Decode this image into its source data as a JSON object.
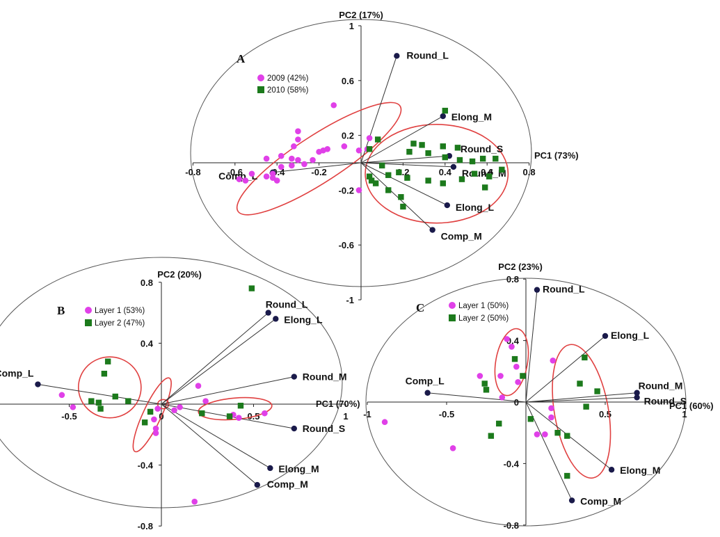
{
  "chart_data": [
    {
      "type": "scatter",
      "panel_label": "A",
      "xlabel": "PC1 (73%)",
      "ylabel": "PC2 (17%)",
      "xlim": [
        -0.8,
        0.8
      ],
      "ylim": [
        -1,
        1
      ],
      "xticks": [
        -0.8,
        -0.6,
        -0.4,
        -0.2,
        0,
        0.2,
        0.4,
        0.6,
        0.8
      ],
      "xtick_labels": [
        "-0.8",
        "-0.6",
        "-0.4",
        "-0.2",
        "",
        "0.2",
        "0.4",
        "0.6",
        "0.8"
      ],
      "yticks": [
        -1,
        -0.6,
        -0.2,
        0.2,
        0.6,
        1
      ],
      "ytick_labels": [
        "-1",
        "-0.6",
        "-0.2",
        "0.2",
        "0.6",
        "1"
      ],
      "colors": {
        "series1": "#e040e8",
        "series2": "#1c7a1c",
        "loadings": "#1a1a4a",
        "ellipse": "#e04040"
      },
      "legend": [
        {
          "label": "2009 (42%)",
          "marker": "circle"
        },
        {
          "label": "2010 (58%)",
          "marker": "square"
        }
      ],
      "loadings": [
        {
          "name": "Round_L",
          "x": 0.17,
          "y": 0.78
        },
        {
          "name": "Elong_M",
          "x": 0.39,
          "y": 0.34
        },
        {
          "name": "Round_S",
          "x": 0.42,
          "y": 0.05
        },
        {
          "name": "Round_M",
          "x": 0.44,
          "y": -0.03
        },
        {
          "name": "Elong_L",
          "x": 0.41,
          "y": -0.31
        },
        {
          "name": "Comp_M",
          "x": 0.34,
          "y": -0.49
        },
        {
          "name": "Comp_L",
          "x": -0.42,
          "y": -0.07
        }
      ],
      "series": [
        {
          "name": "2009 (42%)",
          "points": [
            [
              -0.13,
              0.42
            ],
            [
              -0.3,
              0.23
            ],
            [
              -0.3,
              0.17
            ],
            [
              -0.32,
              0.12
            ],
            [
              -0.45,
              0.03
            ],
            [
              -0.38,
              0.05
            ],
            [
              -0.33,
              0.03
            ],
            [
              -0.3,
              0.02
            ],
            [
              -0.18,
              0.09
            ],
            [
              -0.16,
              0.1
            ],
            [
              -0.2,
              0.08
            ],
            [
              -0.08,
              0.12
            ],
            [
              0.04,
              0.18
            ],
            [
              0.03,
              0.1
            ],
            [
              -0.01,
              0.09
            ],
            [
              -0.52,
              -0.08
            ],
            [
              -0.55,
              -0.13
            ],
            [
              -0.45,
              -0.1
            ],
            [
              -0.42,
              -0.11
            ],
            [
              -0.38,
              -0.03
            ],
            [
              -0.33,
              -0.02
            ],
            [
              -0.27,
              -0.01
            ],
            [
              -0.23,
              0.02
            ],
            [
              -0.01,
              -0.2
            ],
            [
              -0.58,
              -0.12
            ],
            [
              -0.42,
              -0.08
            ],
            [
              -0.4,
              -0.13
            ]
          ]
        },
        {
          "name": "2010 (58%)",
          "points": [
            [
              0.08,
              0.17
            ],
            [
              0.04,
              0.1
            ],
            [
              0.4,
              0.38
            ],
            [
              0.25,
              0.14
            ],
            [
              0.29,
              0.13
            ],
            [
              0.39,
              0.12
            ],
            [
              0.46,
              0.11
            ],
            [
              0.23,
              0.08
            ],
            [
              0.32,
              0.07
            ],
            [
              0.4,
              0.04
            ],
            [
              0.47,
              0.02
            ],
            [
              0.53,
              0.01
            ],
            [
              0.58,
              0.03
            ],
            [
              0.64,
              0.03
            ],
            [
              0.67,
              -0.05
            ],
            [
              0.54,
              -0.08
            ],
            [
              0.61,
              -0.1
            ],
            [
              0.48,
              -0.12
            ],
            [
              0.39,
              -0.15
            ],
            [
              0.32,
              -0.13
            ],
            [
              0.22,
              -0.11
            ],
            [
              0.18,
              -0.07
            ],
            [
              0.13,
              -0.09
            ],
            [
              0.1,
              -0.02
            ],
            [
              0.04,
              -0.1
            ],
            [
              0.05,
              -0.13
            ],
            [
              0.13,
              -0.2
            ],
            [
              0.19,
              -0.25
            ],
            [
              0.2,
              -0.32
            ],
            [
              0.07,
              -0.15
            ],
            [
              0.59,
              -0.18
            ]
          ]
        }
      ],
      "ellipses": [
        {
          "cx": -0.2,
          "cy": 0.03,
          "rx": 0.46,
          "ry": 0.17,
          "angle": 33
        },
        {
          "cx": 0.36,
          "cy": -0.08,
          "rx": 0.34,
          "ry": 0.36,
          "angle": 0
        }
      ]
    },
    {
      "type": "scatter",
      "panel_label": "B",
      "xlabel": "PC1 (70%)",
      "ylabel": "PC2 (20%)",
      "xlim": [
        -1,
        1
      ],
      "ylim": [
        -0.8,
        0.8
      ],
      "xticks": [
        -1,
        -0.5,
        0,
        0.5,
        1
      ],
      "xtick_labels": [
        "-1",
        "-0.5",
        "0",
        "0.5",
        "1"
      ],
      "yticks": [
        -0.8,
        -0.4,
        0.4,
        0.8
      ],
      "ytick_labels": [
        "-0.8",
        "-0.4",
        "0.4",
        "0.8"
      ],
      "colors": {
        "series1": "#e040e8",
        "series2": "#1c7a1c",
        "loadings": "#1a1a4a",
        "ellipse": "#e04040"
      },
      "legend": [
        {
          "label": "Layer 1 (53%)",
          "marker": "circle"
        },
        {
          "label": "Layer 2 (47%)",
          "marker": "square"
        }
      ],
      "loadings": [
        {
          "name": "Round_L",
          "x": 0.58,
          "y": 0.6
        },
        {
          "name": "Elong_L",
          "x": 0.62,
          "y": 0.56
        },
        {
          "name": "Round_M",
          "x": 0.72,
          "y": 0.18
        },
        {
          "name": "Round_S",
          "x": 0.72,
          "y": -0.16
        },
        {
          "name": "Elong_M",
          "x": 0.59,
          "y": -0.42
        },
        {
          "name": "Comp_M",
          "x": 0.52,
          "y": -0.53
        },
        {
          "name": "Comp_L",
          "x": -0.67,
          "y": 0.13
        }
      ],
      "series": [
        {
          "name": "Layer 1 (53%)",
          "points": [
            [
              -0.54,
              0.06
            ],
            [
              -0.48,
              -0.02
            ],
            [
              -0.04,
              -0.1
            ],
            [
              -0.03,
              -0.16
            ],
            [
              -0.03,
              -0.19
            ],
            [
              0.2,
              0.12
            ],
            [
              0.24,
              0.02
            ],
            [
              0.39,
              -0.07
            ],
            [
              0.42,
              -0.09
            ],
            [
              0.56,
              -0.06
            ],
            [
              0.18,
              -0.64
            ],
            [
              -0.02,
              -0.03
            ],
            [
              0.1,
              -0.02
            ],
            [
              0.07,
              -0.04
            ]
          ]
        },
        {
          "name": "Layer 2 (47%)",
          "points": [
            [
              0.49,
              0.76
            ],
            [
              -0.29,
              0.28
            ],
            [
              -0.31,
              0.2
            ],
            [
              -0.38,
              0.02
            ],
            [
              -0.34,
              0.01
            ],
            [
              -0.25,
              0.05
            ],
            [
              -0.18,
              0.02
            ],
            [
              -0.33,
              -0.03
            ],
            [
              -0.09,
              -0.12
            ],
            [
              0.22,
              -0.06
            ],
            [
              0.37,
              -0.08
            ],
            [
              0.43,
              -0.01
            ],
            [
              -0.06,
              -0.05
            ]
          ]
        }
      ],
      "ellipses": [
        {
          "cx": -0.28,
          "cy": 0.11,
          "rx": 0.17,
          "ry": 0.2,
          "angle": 0
        },
        {
          "cx": -0.05,
          "cy": -0.07,
          "rx": 0.22,
          "ry": 0.06,
          "angle": 65
        },
        {
          "cx": 0.4,
          "cy": -0.03,
          "rx": 0.2,
          "ry": 0.07,
          "angle": 5
        },
        {
          "cx": 0.01,
          "cy": 0.0,
          "rx": 0.03,
          "ry": 0.03,
          "angle": 0
        }
      ]
    },
    {
      "type": "scatter",
      "panel_label": "C",
      "xlabel": "PC1 (60%)",
      "ylabel": "PC2 (23%)",
      "xlim": [
        -1,
        1
      ],
      "ylim": [
        -0.8,
        0.8
      ],
      "xticks": [
        -1,
        -0.5,
        0.5,
        1
      ],
      "xtick_labels": [
        "-1",
        "-0.5",
        "0.5",
        "1"
      ],
      "yticks": [
        -0.8,
        -0.4,
        0,
        0.4,
        0.8
      ],
      "ytick_labels": [
        "-0.8",
        "-0.4",
        "0",
        "0.4",
        "0.8"
      ],
      "colors": {
        "series1": "#e040e8",
        "series2": "#1c7a1c",
        "loadings": "#1a1a4a",
        "ellipse": "#e04040"
      },
      "legend": [
        {
          "label": "Layer 1 (50%)",
          "marker": "circle"
        },
        {
          "label": "Layer 2 (50%)",
          "marker": "square"
        }
      ],
      "loadings": [
        {
          "name": "Round_L",
          "x": 0.07,
          "y": 0.73
        },
        {
          "name": "Elong_L",
          "x": 0.5,
          "y": 0.43
        },
        {
          "name": "Round_M",
          "x": 0.7,
          "y": 0.06
        },
        {
          "name": "Round_S",
          "x": 0.7,
          "y": 0.03
        },
        {
          "name": "Elong_M",
          "x": 0.54,
          "y": -0.44
        },
        {
          "name": "Comp_M",
          "x": 0.29,
          "y": -0.64
        },
        {
          "name": "Comp_L",
          "x": -0.62,
          "y": 0.06
        }
      ],
      "series": [
        {
          "name": "Layer 1 (50%)",
          "points": [
            [
              -0.12,
              0.41
            ],
            [
              -0.09,
              0.36
            ],
            [
              -0.16,
              0.17
            ],
            [
              -0.29,
              0.17
            ],
            [
              -0.15,
              0.03
            ],
            [
              -0.06,
              0.23
            ],
            [
              -0.05,
              0.13
            ],
            [
              0.17,
              0.27
            ],
            [
              0.16,
              -0.1
            ],
            [
              0.07,
              -0.21
            ],
            [
              0.12,
              -0.21
            ],
            [
              0.16,
              -0.04
            ],
            [
              -0.89,
              -0.13
            ],
            [
              -0.46,
              -0.3
            ]
          ]
        },
        {
          "name": "Layer 2 (50%)",
          "points": [
            [
              -0.07,
              0.28
            ],
            [
              -0.26,
              0.12
            ],
            [
              -0.25,
              0.08
            ],
            [
              -0.02,
              0.17
            ],
            [
              0.37,
              0.29
            ],
            [
              0.34,
              0.12
            ],
            [
              0.45,
              0.07
            ],
            [
              0.38,
              -0.03
            ],
            [
              -0.17,
              -0.14
            ],
            [
              0.03,
              -0.11
            ],
            [
              -0.22,
              -0.22
            ],
            [
              0.2,
              -0.2
            ],
            [
              0.26,
              -0.22
            ],
            [
              0.26,
              -0.48
            ]
          ]
        }
      ],
      "ellipses": [
        {
          "cx": -0.09,
          "cy": 0.26,
          "rx": 0.1,
          "ry": 0.22,
          "angle": -10
        },
        {
          "cx": 0.35,
          "cy": -0.06,
          "rx": 0.17,
          "ry": 0.44,
          "angle": 10
        }
      ]
    }
  ]
}
